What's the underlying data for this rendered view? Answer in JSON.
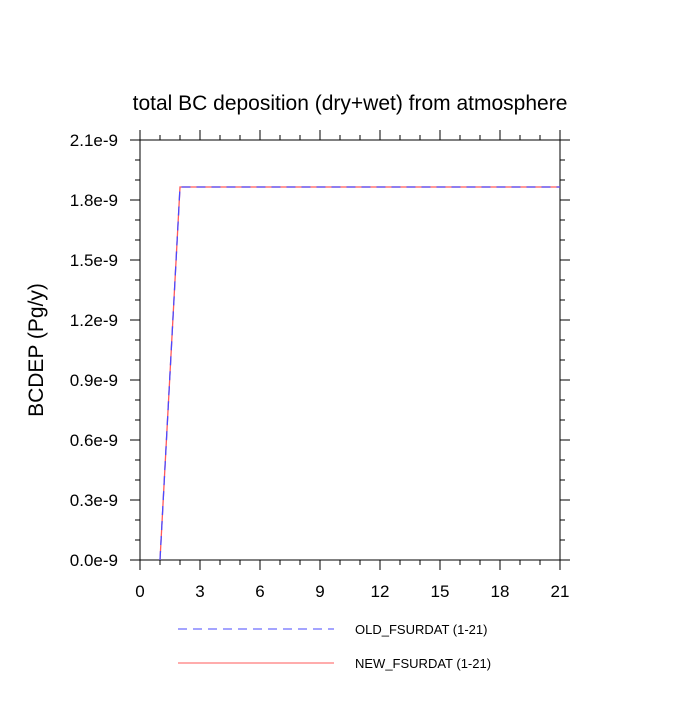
{
  "chart_data": {
    "type": "line",
    "title": "total BC deposition (dry+wet) from atmosphere",
    "xlabel": "",
    "ylabel": "BCDEP  (Pg/y)",
    "xlim": [
      0,
      21
    ],
    "ylim": [
      0,
      2.1e-09
    ],
    "x_ticks": [
      0,
      3,
      6,
      9,
      12,
      15,
      18,
      21
    ],
    "x_tick_labels": [
      "0",
      "3",
      "6",
      "9",
      "12",
      "15",
      "18",
      "21"
    ],
    "y_ticks": [
      0,
      3e-10,
      6e-10,
      9e-10,
      1.2e-09,
      1.5e-09,
      1.8e-09,
      2.1e-09
    ],
    "y_tick_labels": [
      "0.0e-9",
      "0.3e-9",
      "0.6e-9",
      "0.9e-9",
      "1.2e-9",
      "1.5e-9",
      "1.8e-9",
      "2.1e-9"
    ],
    "grid": false,
    "legend_position": "bottom",
    "series": [
      {
        "name": "OLD_FSURDAT (1-21)",
        "color": "#4a4aff",
        "dash": "dashed",
        "x": [
          1,
          2,
          3,
          4,
          5,
          6,
          7,
          8,
          9,
          10,
          11,
          12,
          13,
          14,
          15,
          16,
          17,
          18,
          19,
          20,
          21
        ],
        "y": [
          0,
          1.865e-09,
          1.865e-09,
          1.865e-09,
          1.865e-09,
          1.865e-09,
          1.865e-09,
          1.865e-09,
          1.865e-09,
          1.865e-09,
          1.865e-09,
          1.865e-09,
          1.865e-09,
          1.865e-09,
          1.865e-09,
          1.865e-09,
          1.865e-09,
          1.865e-09,
          1.865e-09,
          1.865e-09,
          1.865e-09
        ]
      },
      {
        "name": "NEW_FSURDAT (1-21)",
        "color": "#ff5a5a",
        "dash": "solid",
        "x": [
          1,
          2,
          3,
          4,
          5,
          6,
          7,
          8,
          9,
          10,
          11,
          12,
          13,
          14,
          15,
          16,
          17,
          18,
          19,
          20,
          21
        ],
        "y": [
          0,
          1.865e-09,
          1.865e-09,
          1.865e-09,
          1.865e-09,
          1.865e-09,
          1.865e-09,
          1.865e-09,
          1.865e-09,
          1.865e-09,
          1.865e-09,
          1.865e-09,
          1.865e-09,
          1.865e-09,
          1.865e-09,
          1.865e-09,
          1.865e-09,
          1.865e-09,
          1.865e-09,
          1.865e-09,
          1.865e-09
        ]
      }
    ]
  }
}
